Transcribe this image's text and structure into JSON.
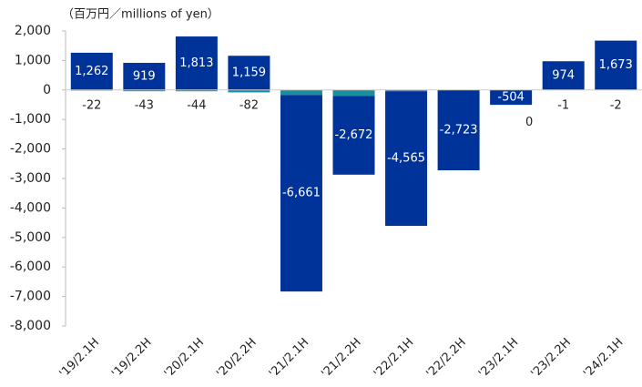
{
  "chart_data": {
    "type": "stacked_bar",
    "y_label": "（百万円／millions of yen）",
    "categories": [
      "'19/2.1H",
      "'19/2.2H",
      "'20/2.1H",
      "'20/2.2H",
      "'21/2.1H",
      "'21/2.2H",
      "'22/2.1H",
      "'22/2.2H",
      "'23/2.1H",
      "'23/2.2H",
      "'24/2.1H"
    ],
    "series": [
      {
        "color": "#1a8e9c",
        "values": [
          -22,
          -43,
          -44,
          -82,
          -170,
          -199,
          -42,
          0,
          0,
          -1,
          -2
        ]
      },
      {
        "color": "#00339a",
        "values": [
          1262,
          919,
          1813,
          1159,
          -6661,
          -2672,
          -4565,
          -2723,
          -504,
          974,
          1673
        ],
        "value_labels": [
          "1,262",
          "919",
          "1,813",
          "1,159",
          "-6,661",
          "-2,672",
          "-4,565",
          "-2,723",
          "-504",
          "974",
          "1,673"
        ]
      }
    ],
    "ylim": [
      -8000,
      2000
    ],
    "yticks": [
      {
        "value": 2000,
        "label": "2,000"
      },
      {
        "value": 1000,
        "label": "1,000"
      },
      0,
      {
        "value": -1000,
        "label": "-1,000"
      },
      {
        "value": -2000,
        "label": "-2,000"
      },
      {
        "value": -3000,
        "label": "-3,000"
      },
      {
        "value": -4000,
        "label": "-4,000"
      },
      {
        "value": -5000,
        "label": "-5,000"
      },
      {
        "value": -6000,
        "label": "-6,000"
      },
      {
        "value": -7000,
        "label": "-7,000"
      },
      {
        "value": -8000,
        "label": "-8,000"
      }
    ]
  }
}
